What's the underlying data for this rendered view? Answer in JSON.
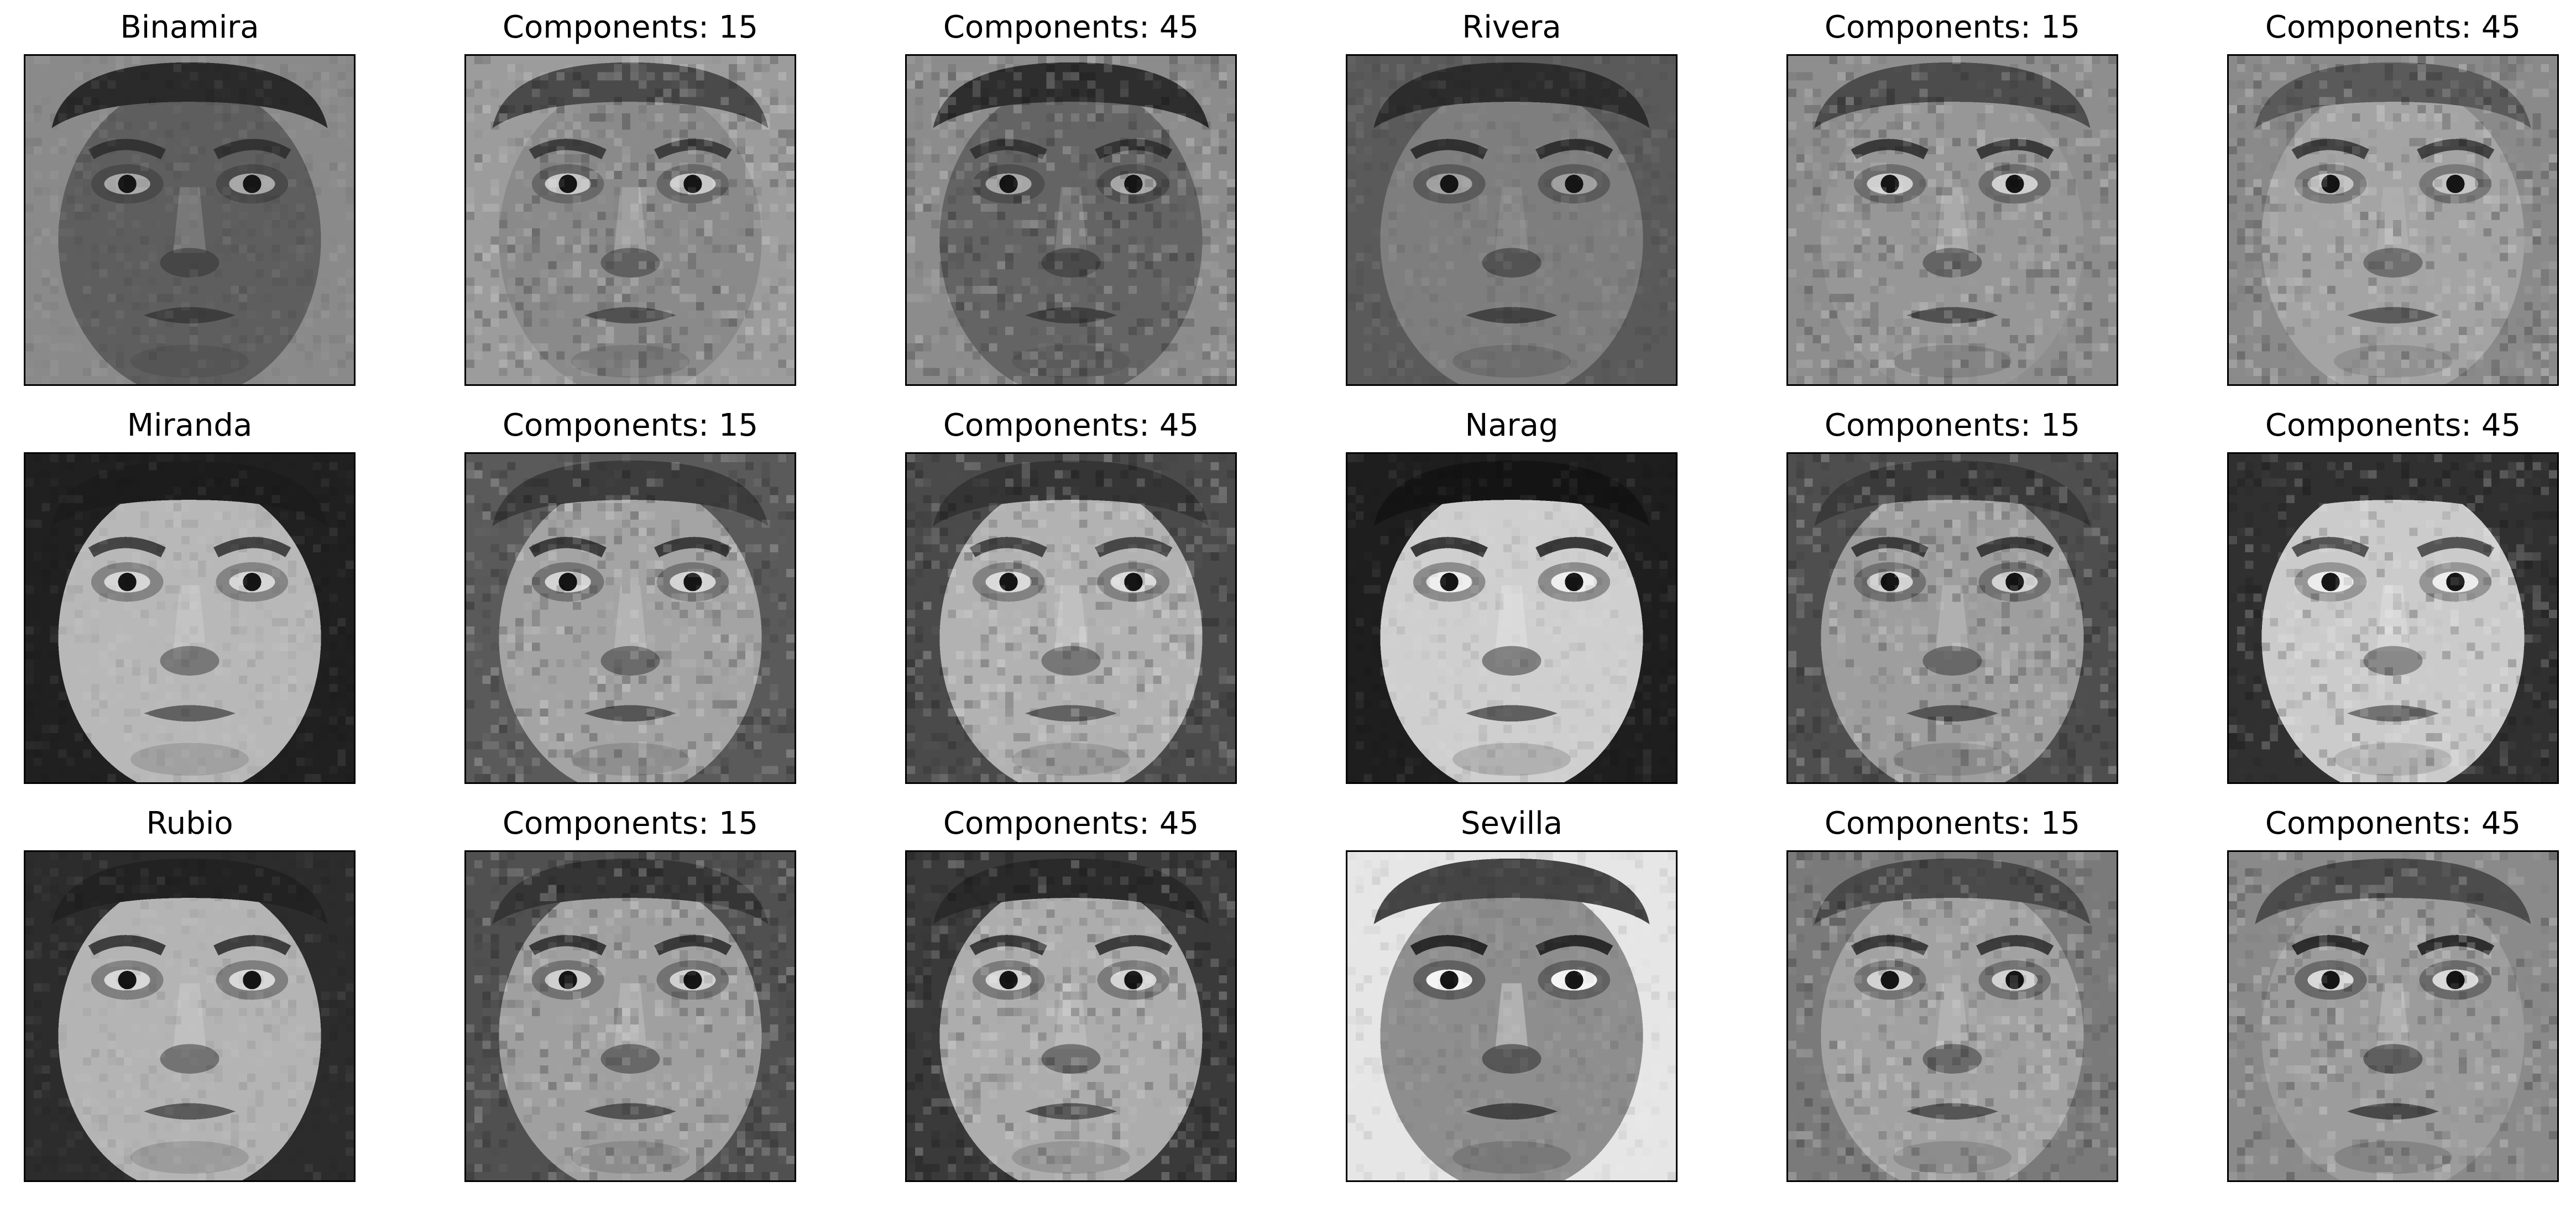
{
  "grid": {
    "rows": [
      {
        "panels": [
          {
            "title": "Binamira",
            "kind": "original",
            "tone": {
              "bg": "#8a8a8a",
              "face": "#5e5e5e",
              "hair": "#2a2a2a",
              "shadow": "#333333",
              "highlight": "#a8a8a8"
            }
          },
          {
            "title": "Components: 15",
            "kind": "reconstruction",
            "tone": {
              "bg": "#9c9c9c",
              "face": "#8a8a8a",
              "hair": "#4a4a4a",
              "shadow": "#3e3e3e",
              "highlight": "#c8c8c8"
            }
          },
          {
            "title": "Components: 45",
            "kind": "reconstruction",
            "tone": {
              "bg": "#8c8c8c",
              "face": "#646464",
              "hair": "#2e2e2e",
              "shadow": "#353535",
              "highlight": "#a6a6a6"
            }
          },
          {
            "title": "Rivera",
            "kind": "original",
            "tone": {
              "bg": "#5a5a5a",
              "face": "#7e7e7e",
              "hair": "#2c2c2c",
              "shadow": "#303030",
              "highlight": "#a0a0a0"
            }
          },
          {
            "title": "Components: 15",
            "kind": "reconstruction",
            "tone": {
              "bg": "#8e8e8e",
              "face": "#979797",
              "hair": "#4c4c4c",
              "shadow": "#3a3a3a",
              "highlight": "#cfcfcf"
            }
          },
          {
            "title": "Components: 45",
            "kind": "reconstruction",
            "tone": {
              "bg": "#8a8a8a",
              "face": "#a4a4a4",
              "hair": "#5a5a5a",
              "shadow": "#444444",
              "highlight": "#c4c4c4"
            }
          }
        ]
      },
      {
        "panels": [
          {
            "title": "Miranda",
            "kind": "original",
            "tone": {
              "bg": "#202020",
              "face": "#b8b8b8",
              "hair": "#1c1c1c",
              "shadow": "#444444",
              "highlight": "#d6d6d6"
            }
          },
          {
            "title": "Components: 15",
            "kind": "reconstruction",
            "tone": {
              "bg": "#5a5a5a",
              "face": "#a4a4a4",
              "hair": "#3c3c3c",
              "shadow": "#3c3c3c",
              "highlight": "#d4d4d4"
            }
          },
          {
            "title": "Components: 45",
            "kind": "reconstruction",
            "tone": {
              "bg": "#4a4a4a",
              "face": "#b2b2b2",
              "hair": "#353535",
              "shadow": "#474747",
              "highlight": "#dadada"
            }
          },
          {
            "title": "Narag",
            "kind": "original",
            "tone": {
              "bg": "#1e1e1e",
              "face": "#cfcfcf",
              "hair": "#141414",
              "shadow": "#3a3a3a",
              "highlight": "#eeeeee"
            }
          },
          {
            "title": "Components: 15",
            "kind": "reconstruction",
            "tone": {
              "bg": "#4e4e4e",
              "face": "#9e9e9e",
              "hair": "#3a3a3a",
              "shadow": "#3c3c3c",
              "highlight": "#d2d2d2"
            }
          },
          {
            "title": "Components: 45",
            "kind": "reconstruction",
            "tone": {
              "bg": "#303030",
              "face": "#cbcbcb",
              "hair": "#303030",
              "shadow": "#545454",
              "highlight": "#ececec"
            }
          }
        ]
      },
      {
        "panels": [
          {
            "title": "Rubio",
            "kind": "original",
            "tone": {
              "bg": "#2c2c2c",
              "face": "#b4b4b4",
              "hair": "#222222",
              "shadow": "#3e3e3e",
              "highlight": "#d8d8d8"
            }
          },
          {
            "title": "Components: 15",
            "kind": "reconstruction",
            "tone": {
              "bg": "#505050",
              "face": "#a0a0a0",
              "hair": "#353535",
              "shadow": "#3a3a3a",
              "highlight": "#d0d0d0"
            }
          },
          {
            "title": "Components: 45",
            "kind": "reconstruction",
            "tone": {
              "bg": "#3a3a3a",
              "face": "#adadad",
              "hair": "#2a2a2a",
              "shadow": "#3d3d3d",
              "highlight": "#d4d4d4"
            }
          },
          {
            "title": "Sevilla",
            "kind": "original",
            "tone": {
              "bg": "#e6e6e6",
              "face": "#8e8e8e",
              "hair": "#444444",
              "shadow": "#2a2a2a",
              "highlight": "#f4f4f4"
            }
          },
          {
            "title": "Components: 15",
            "kind": "reconstruction",
            "tone": {
              "bg": "#7a7a7a",
              "face": "#a2a2a2",
              "hair": "#4a4a4a",
              "shadow": "#3c3c3c",
              "highlight": "#d2d2d2"
            }
          },
          {
            "title": "Components: 45",
            "kind": "reconstruction",
            "tone": {
              "bg": "#8a8a8a",
              "face": "#9c9c9c",
              "hair": "#4c4c4c",
              "shadow": "#2e2e2e",
              "highlight": "#d8d8d8"
            }
          }
        ]
      }
    ]
  }
}
